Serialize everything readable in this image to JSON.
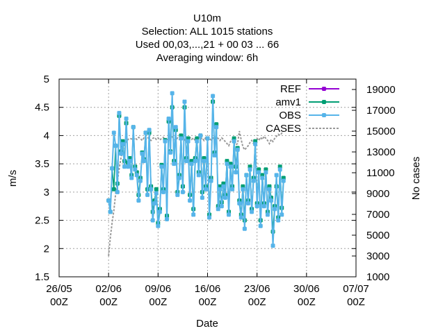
{
  "chart_data": {
    "type": "line",
    "title": [
      "U10m",
      "Selection: ALL   1015 stations",
      "Used  00,03,...,21  + 00 03 ... 66",
      "Averaging window:  6h"
    ],
    "xlabel": "Date",
    "ylabel": "m/s",
    "y2label": "No cases",
    "ylim": [
      1.5,
      5
    ],
    "y2lim": [
      1000,
      20000
    ],
    "yticks": [
      "1.5",
      "2",
      "2.5",
      "3",
      "3.5",
      "4",
      "4.5",
      "5"
    ],
    "y2ticks": [
      "1000",
      "3000",
      "5000",
      "7000",
      "9000",
      "11000",
      "13000",
      "15000",
      "17000",
      "19000"
    ],
    "xticks": [
      "26/05\n00Z",
      "02/06\n00Z",
      "09/06\n00Z",
      "16/06\n00Z",
      "23/06\n00Z",
      "30/06\n00Z",
      "07/07\n00Z"
    ],
    "grid": true,
    "legend_position": "top-right",
    "colors": {
      "REF": "#9400d3",
      "amv1": "#009e73",
      "OBS": "#56b4e9",
      "CASES": "#999999"
    },
    "x_start": "2023-06-01 00Z",
    "x_step_hours": 6,
    "series": [
      {
        "name": "REF",
        "axis": "y",
        "values": []
      },
      {
        "name": "amv1",
        "axis": "y",
        "values": [
          2.85,
          2.65,
          3.42,
          3.05,
          3.82,
          3.15,
          4.35,
          3.72,
          3.9,
          3.55,
          4.22,
          3.52,
          3.6,
          3.3,
          4.15,
          3.45,
          3.35,
          2.95,
          3.25,
          3.7,
          3.58,
          4.05,
          3.05,
          4.05,
          3.1,
          2.65,
          2.85,
          3.05,
          2.45,
          2.7,
          3.48,
          3.05,
          3.92,
          2.58,
          4.25,
          3.72,
          4.5,
          3.55,
          4.1,
          3.0,
          3.3,
          4.0,
          3.1,
          4.5,
          3.6,
          3.95,
          2.95,
          3.55,
          2.7,
          3.6,
          3.95,
          3.35,
          4.0,
          3.0,
          3.6,
          3.1,
          3.95,
          2.6,
          3.25,
          4.6,
          3.7,
          4.2,
          2.75,
          3.1,
          2.82,
          3.15,
          2.95,
          3.55,
          2.65,
          3.5,
          3.1,
          3.95,
          3.45,
          3.78,
          2.85,
          2.6,
          3.1,
          2.5,
          3.3,
          2.85,
          3.45,
          2.7,
          3.25,
          3.9,
          2.8,
          3.4,
          2.5,
          3.3,
          2.8,
          3.4,
          2.65,
          3.1,
          2.9,
          2.3,
          2.75,
          3.1,
          2.55,
          3.45,
          2.72,
          3.25
        ]
      },
      {
        "name": "OBS",
        "axis": "y",
        "values": [
          2.85,
          2.65,
          3.42,
          4.05,
          3.82,
          3.0,
          4.4,
          3.68,
          3.85,
          3.45,
          4.3,
          3.45,
          3.55,
          3.25,
          4.15,
          3.4,
          3.3,
          2.85,
          3.2,
          3.68,
          3.55,
          4.05,
          2.95,
          4.1,
          3.05,
          2.5,
          2.8,
          2.98,
          2.4,
          2.65,
          3.45,
          3.0,
          3.9,
          2.52,
          4.3,
          3.7,
          4.75,
          3.5,
          4.15,
          2.95,
          3.25,
          3.95,
          3.0,
          4.6,
          3.55,
          3.9,
          2.85,
          3.5,
          2.6,
          3.55,
          3.9,
          3.3,
          4.0,
          2.9,
          3.55,
          3.05,
          3.95,
          2.55,
          3.2,
          4.7,
          3.65,
          4.15,
          2.7,
          3.05,
          2.75,
          3.1,
          2.9,
          3.5,
          2.6,
          3.45,
          3.05,
          3.9,
          3.35,
          3.75,
          2.8,
          2.55,
          3.05,
          2.35,
          3.3,
          2.8,
          3.4,
          2.65,
          3.2,
          3.85,
          2.75,
          3.35,
          2.4,
          3.25,
          2.75,
          3.35,
          2.6,
          3.05,
          2.85,
          2.05,
          2.7,
          3.3,
          2.5,
          3.4,
          2.6,
          3.2
        ]
      },
      {
        "name": "CASES",
        "axis": "y2",
        "values": [
          3000,
          4800,
          6200,
          7400,
          9000,
          10200,
          11400,
          12400,
          13100,
          13700,
          14000,
          14200,
          14300,
          14250,
          14150,
          14350,
          14200,
          14400,
          14300,
          14100,
          14350,
          14200,
          14400,
          14250,
          14100,
          14300,
          14400,
          14200,
          14350,
          14150,
          14300,
          14400,
          14200,
          14350,
          14100,
          14300,
          14450,
          14250,
          14100,
          14350,
          14200,
          14400,
          14300,
          14150,
          14350,
          14250,
          14400,
          14200,
          14350,
          14100,
          14300,
          14450,
          14200,
          14350,
          14100,
          14400,
          14250,
          14300,
          14150,
          14350,
          14200,
          14400,
          14300,
          14100,
          14350,
          14200,
          14000,
          13800,
          13600,
          14000,
          14200,
          13900,
          13700,
          13800,
          15000,
          14200,
          13500,
          13200,
          13400,
          13600,
          13900,
          14100,
          13800,
          14000,
          14300,
          14100,
          14400,
          14200,
          14500,
          14300,
          14100,
          13800,
          14200,
          14000,
          14300,
          14500,
          14700,
          14600,
          14800,
          14700
        ]
      }
    ]
  }
}
